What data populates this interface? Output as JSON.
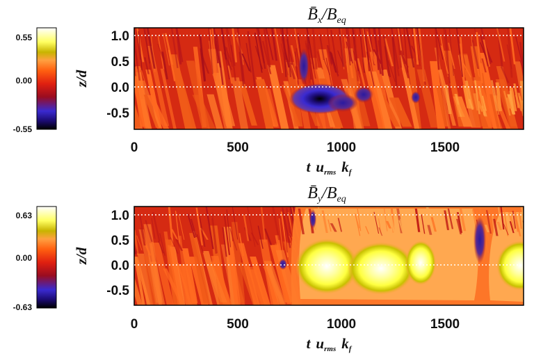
{
  "chart_data": [
    {
      "type": "heatmap",
      "title": "B̄x/Beq",
      "xlabel": "t urms kf",
      "ylabel": "z/d",
      "xlim": [
        0,
        1880
      ],
      "ylim": [
        -0.9,
        1.15
      ],
      "x_ticks": [
        "0",
        "500",
        "1000",
        "1500"
      ],
      "y_ticks": [
        "1.0",
        "0.5",
        "0.0",
        "-0.5"
      ],
      "grid": "dotted at z/d = 0.0 and 1.0",
      "colorbar": {
        "min": "-0.55",
        "mid": "0.00",
        "max": "0.55",
        "colors": [
          "#000000",
          "#1a0a6e",
          "#3a2ad0",
          "#b01010",
          "#e02010",
          "#ff6010",
          "#ffa040",
          "#c8b400",
          "#ffff60",
          "#ffffff"
        ]
      },
      "features": [
        {
          "kind": "negative_patch",
          "t": 900,
          "z": -0.25,
          "value": -0.55
        },
        {
          "kind": "negative_patch",
          "t": 1000,
          "z": -0.2,
          "value": -0.3
        },
        {
          "kind": "negative_patch",
          "t": 1120,
          "z": -0.1,
          "value": -0.2
        },
        {
          "kind": "negative_patch",
          "t": 860,
          "z": 0.4,
          "value": -0.25
        }
      ]
    },
    {
      "type": "heatmap",
      "title": "B̄y/Beq",
      "xlabel": "t urms kf",
      "ylabel": "z/d",
      "xlim": [
        0,
        1880
      ],
      "ylim": [
        -0.9,
        1.15
      ],
      "x_ticks": [
        "0",
        "500",
        "1000",
        "1500"
      ],
      "y_ticks": [
        "1.0",
        "0.5",
        "0.0",
        "-0.5"
      ],
      "grid": "dotted at z/d = 0.0 and 1.0",
      "colorbar": {
        "min": "-0.63",
        "mid": "0.00",
        "max": "0.63",
        "colors": [
          "#000000",
          "#1a0a6e",
          "#3a2ad0",
          "#b01010",
          "#e02010",
          "#ff6010",
          "#ffa040",
          "#c8b400",
          "#ffff60",
          "#ffffff"
        ]
      },
      "features": [
        {
          "kind": "positive_patch",
          "t": 930,
          "z": 0.0,
          "value": 0.6
        },
        {
          "kind": "positive_patch",
          "t": 1130,
          "z": -0.1,
          "value": 0.63
        },
        {
          "kind": "positive_patch",
          "t": 1360,
          "z": 0.0,
          "value": 0.55
        },
        {
          "kind": "positive_patch",
          "t": 1860,
          "z": 0.0,
          "value": 0.6
        },
        {
          "kind": "negative_patch",
          "t": 1680,
          "z": 0.4,
          "value": -0.4
        },
        {
          "kind": "negative_patch",
          "t": 720,
          "z": 0.0,
          "value": -0.3
        }
      ]
    }
  ],
  "panels": [
    {
      "title_main": "B̄",
      "title_sub": "x",
      "title_den": "/B",
      "title_den_sub": "eq",
      "ylabel": "z/d",
      "x_title": {
        "t": "t",
        "u": "u",
        "u_sub": "rms",
        "k": "k",
        "k_sub": "f"
      },
      "x_ticks": [
        "0",
        "500",
        "1000",
        "1500"
      ],
      "y_ticks": [
        "1.0",
        "0.5",
        "0.0",
        "-0.5"
      ],
      "cbar_ticks": [
        "0.55",
        "0.00",
        "-0.55"
      ]
    },
    {
      "title_main": "B̄",
      "title_sub": "y",
      "title_den": "/B",
      "title_den_sub": "eq",
      "ylabel": "z/d",
      "x_title": {
        "t": "t",
        "u": "u",
        "u_sub": "rms",
        "k": "k",
        "k_sub": "f"
      },
      "x_ticks": [
        "0",
        "500",
        "1000",
        "1500"
      ],
      "y_ticks": [
        "1.0",
        "0.5",
        "0.0",
        "-0.5"
      ],
      "cbar_ticks": [
        "0.63",
        "0.00",
        "-0.63"
      ]
    }
  ]
}
